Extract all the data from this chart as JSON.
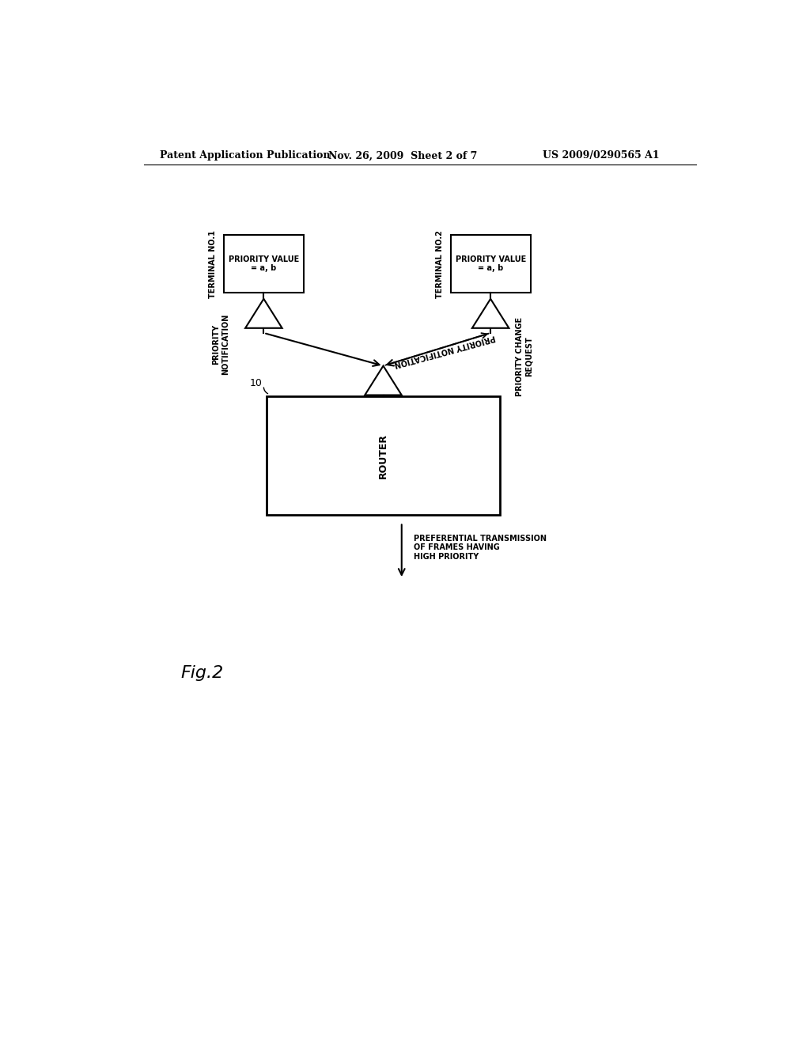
{
  "bg_color": "#ffffff",
  "header_left": "Patent Application Publication",
  "header_mid": "Nov. 26, 2009  Sheet 2 of 7",
  "header_right": "US 2009/0290565 A1",
  "fig_label": "Fig.2",
  "terminal1_label": "TERMINAL NO.1",
  "terminal2_label": "TERMINAL NO.2",
  "priority_box1_text": "PRIORITY VALUE\n= a, b",
  "priority_box2_text": "PRIORITY VALUE\n= a, b",
  "router_label": "ROUTER",
  "router_ref": "10",
  "arrow_pn1_label": "PRIORITY\nNOTIFICATION",
  "arrow_pn2_label": "PRIORITY NOTIFICATION",
  "arrow_pcr_label": "PRIORITY CHANGE\nREQUEST",
  "arrow_pref_label": "PREFERENTIAL TRANSMISSION\nOF FRAMES HAVING\nHIGH PRIORITY",
  "text_color": "#000000",
  "line_color": "#000000",
  "dashed_color": "#000000",
  "header_fontsize": 9,
  "label_fontsize": 7,
  "router_fontsize": 9,
  "fig_fontsize": 16
}
